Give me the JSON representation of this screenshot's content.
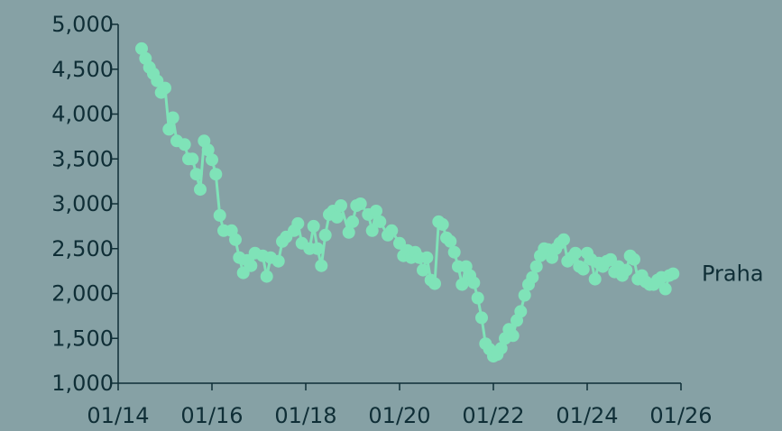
{
  "chart_data": {
    "type": "line",
    "x_axis": {
      "kind": "date",
      "min": "2014-01",
      "max": "2026-01",
      "ticks": [
        "2014-01",
        "2016-01",
        "2018-01",
        "2020-01",
        "2022-01",
        "2024-01",
        "2026-01"
      ],
      "tick_labels": [
        "01/14",
        "01/16",
        "01/18",
        "01/20",
        "01/22",
        "01/24",
        "01/26"
      ]
    },
    "y_axis": {
      "min": 1000,
      "max": 5000,
      "ticks": [
        1000,
        1500,
        2000,
        2500,
        3000,
        3500,
        4000,
        4500,
        5000
      ],
      "tick_labels": [
        "1,000",
        "1,500",
        "2,000",
        "2,500",
        "3,000",
        "3,500",
        "4,000",
        "4,500",
        "5,000"
      ]
    },
    "grid": false,
    "markers": true,
    "series": [
      {
        "name": "Praha",
        "color": "#7fe3b8",
        "points": [
          [
            "2014-07",
            4730
          ],
          [
            "2014-08",
            4620
          ],
          [
            "2014-09",
            4520
          ],
          [
            "2014-10",
            4450
          ],
          [
            "2014-11",
            4370
          ],
          [
            "2014-12",
            4240
          ],
          [
            "2015-01",
            4290
          ],
          [
            "2015-02",
            3830
          ],
          [
            "2015-03",
            3960
          ],
          [
            "2015-04",
            3700
          ],
          [
            "2015-06",
            3660
          ],
          [
            "2015-07",
            3500
          ],
          [
            "2015-08",
            3500
          ],
          [
            "2015-09",
            3330
          ],
          [
            "2015-10",
            3160
          ],
          [
            "2015-11",
            3700
          ],
          [
            "2015-12",
            3600
          ],
          [
            "2016-01",
            3490
          ],
          [
            "2016-02",
            3330
          ],
          [
            "2016-03",
            2870
          ],
          [
            "2016-04",
            2700
          ],
          [
            "2016-06",
            2700
          ],
          [
            "2016-07",
            2600
          ],
          [
            "2016-08",
            2400
          ],
          [
            "2016-09",
            2230
          ],
          [
            "2016-10",
            2370
          ],
          [
            "2016-11",
            2310
          ],
          [
            "2016-12",
            2450
          ],
          [
            "2017-02",
            2420
          ],
          [
            "2017-03",
            2190
          ],
          [
            "2017-04",
            2400
          ],
          [
            "2017-06",
            2360
          ],
          [
            "2017-07",
            2580
          ],
          [
            "2017-08",
            2630
          ],
          [
            "2017-10",
            2700
          ],
          [
            "2017-11",
            2780
          ],
          [
            "2017-12",
            2560
          ],
          [
            "2018-02",
            2500
          ],
          [
            "2018-03",
            2750
          ],
          [
            "2018-04",
            2500
          ],
          [
            "2018-05",
            2310
          ],
          [
            "2018-06",
            2650
          ],
          [
            "2018-07",
            2880
          ],
          [
            "2018-08",
            2920
          ],
          [
            "2018-09",
            2850
          ],
          [
            "2018-10",
            2980
          ],
          [
            "2018-12",
            2680
          ],
          [
            "2019-01",
            2800
          ],
          [
            "2019-02",
            2980
          ],
          [
            "2019-03",
            3000
          ],
          [
            "2019-05",
            2880
          ],
          [
            "2019-06",
            2700
          ],
          [
            "2019-07",
            2920
          ],
          [
            "2019-08",
            2800
          ],
          [
            "2019-10",
            2650
          ],
          [
            "2019-11",
            2700
          ],
          [
            "2020-01",
            2560
          ],
          [
            "2020-02",
            2420
          ],
          [
            "2020-03",
            2480
          ],
          [
            "2020-04",
            2400
          ],
          [
            "2020-05",
            2460
          ],
          [
            "2020-06",
            2400
          ],
          [
            "2020-07",
            2260
          ],
          [
            "2020-08",
            2400
          ],
          [
            "2020-09",
            2150
          ],
          [
            "2020-10",
            2110
          ],
          [
            "2020-11",
            2800
          ],
          [
            "2020-12",
            2770
          ],
          [
            "2021-01",
            2620
          ],
          [
            "2021-02",
            2580
          ],
          [
            "2021-03",
            2460
          ],
          [
            "2021-04",
            2300
          ],
          [
            "2021-05",
            2100
          ],
          [
            "2021-06",
            2300
          ],
          [
            "2021-07",
            2200
          ],
          [
            "2021-08",
            2120
          ],
          [
            "2021-09",
            1950
          ],
          [
            "2021-10",
            1730
          ],
          [
            "2021-11",
            1440
          ],
          [
            "2021-12",
            1380
          ],
          [
            "2022-01",
            1300
          ],
          [
            "2022-02",
            1320
          ],
          [
            "2022-03",
            1390
          ],
          [
            "2022-04",
            1500
          ],
          [
            "2022-05",
            1600
          ],
          [
            "2022-06",
            1530
          ],
          [
            "2022-07",
            1700
          ],
          [
            "2022-08",
            1800
          ],
          [
            "2022-09",
            1980
          ],
          [
            "2022-10",
            2100
          ],
          [
            "2022-11",
            2180
          ],
          [
            "2022-12",
            2300
          ],
          [
            "2023-01",
            2420
          ],
          [
            "2023-02",
            2500
          ],
          [
            "2023-03",
            2490
          ],
          [
            "2023-04",
            2400
          ],
          [
            "2023-05",
            2500
          ],
          [
            "2023-06",
            2560
          ],
          [
            "2023-07",
            2600
          ],
          [
            "2023-08",
            2360
          ],
          [
            "2023-09",
            2400
          ],
          [
            "2023-10",
            2450
          ],
          [
            "2023-11",
            2300
          ],
          [
            "2023-12",
            2270
          ],
          [
            "2024-01",
            2450
          ],
          [
            "2024-02",
            2380
          ],
          [
            "2024-03",
            2160
          ],
          [
            "2024-04",
            2340
          ],
          [
            "2024-05",
            2300
          ],
          [
            "2024-06",
            2360
          ],
          [
            "2024-07",
            2380
          ],
          [
            "2024-08",
            2240
          ],
          [
            "2024-09",
            2300
          ],
          [
            "2024-10",
            2200
          ],
          [
            "2024-11",
            2260
          ],
          [
            "2024-12",
            2420
          ],
          [
            "2025-01",
            2380
          ],
          [
            "2025-02",
            2160
          ],
          [
            "2025-03",
            2200
          ],
          [
            "2025-04",
            2130
          ],
          [
            "2025-05",
            2100
          ],
          [
            "2025-06",
            2100
          ],
          [
            "2025-07",
            2150
          ],
          [
            "2025-08",
            2180
          ],
          [
            "2025-09",
            2050
          ],
          [
            "2025-10",
            2200
          ],
          [
            "2025-11",
            2220
          ]
        ]
      }
    ]
  }
}
